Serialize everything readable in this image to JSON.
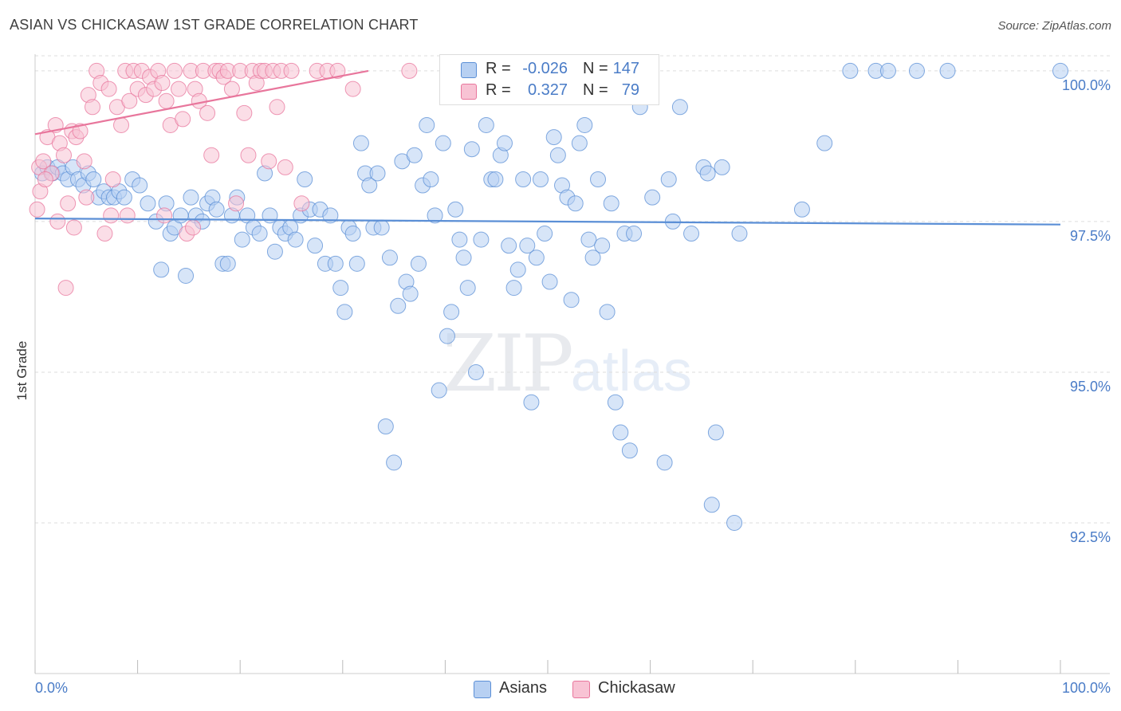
{
  "title": "ASIAN VS CHICKASAW 1ST GRADE CORRELATION CHART",
  "source": "Source: ZipAtlas.com",
  "watermark": {
    "part1": "ZIP",
    "part2": "atlas"
  },
  "legend": {
    "rows": [
      {
        "r_label": "R =",
        "r_value": "-0.026",
        "n_label": "N =",
        "n_value": "147",
        "color": "#5b8fd6",
        "fill": "#b7d0f2"
      },
      {
        "r_label": "R =",
        "r_value": "0.327",
        "n_label": "N =",
        "n_value": "79",
        "color": "#e8769c",
        "fill": "#f8c3d4"
      }
    ]
  },
  "bottom_legend": [
    {
      "label": "Asians",
      "fill": "#b7d0f2",
      "stroke": "#5b8fd6"
    },
    {
      "label": "Chickasaw",
      "fill": "#f8c3d4",
      "stroke": "#e8769c"
    }
  ],
  "chart_data": {
    "type": "scatter",
    "title": "ASIAN VS CHICKASAW 1ST GRADE CORRELATION CHART",
    "xlabel": "",
    "ylabel": "1st Grade",
    "xlim": [
      0,
      100
    ],
    "ylim": [
      90.0,
      100.25
    ],
    "x_ticks": [
      "0.0%",
      "100.0%"
    ],
    "y_ticks": [
      {
        "value": 100.0,
        "label": "100.0%"
      },
      {
        "value": 97.5,
        "label": "97.5%"
      },
      {
        "value": 95.0,
        "label": "95.0%"
      },
      {
        "value": 92.5,
        "label": "92.5%"
      }
    ],
    "grid": true,
    "legend_position": "top-center",
    "series": [
      {
        "name": "Asians",
        "color": "#5b8fd6",
        "fill": "#b7d0f2",
        "trend": {
          "x": [
            0,
            100
          ],
          "y": [
            97.55,
            97.45
          ]
        },
        "points": [
          [
            0.7,
            98.3
          ],
          [
            1.2,
            98.4
          ],
          [
            1.7,
            98.3
          ],
          [
            2.2,
            98.4
          ],
          [
            2.7,
            98.3
          ],
          [
            3.2,
            98.2
          ],
          [
            3.7,
            98.4
          ],
          [
            4.2,
            98.2
          ],
          [
            4.7,
            98.1
          ],
          [
            5.2,
            98.3
          ],
          [
            5.7,
            98.2
          ],
          [
            6.2,
            97.9
          ],
          [
            6.7,
            98.0
          ],
          [
            7.2,
            97.9
          ],
          [
            7.7,
            97.9
          ],
          [
            8.2,
            98.0
          ],
          [
            8.7,
            97.9
          ],
          [
            9.5,
            98.2
          ],
          [
            10.2,
            98.1
          ],
          [
            11,
            97.8
          ],
          [
            11.8,
            97.5
          ],
          [
            12.3,
            96.7
          ],
          [
            12.8,
            97.8
          ],
          [
            13.2,
            97.3
          ],
          [
            13.6,
            97.4
          ],
          [
            14.2,
            97.6
          ],
          [
            14.7,
            96.6
          ],
          [
            15.2,
            97.9
          ],
          [
            15.7,
            97.6
          ],
          [
            16.3,
            97.5
          ],
          [
            16.8,
            97.8
          ],
          [
            17.3,
            97.9
          ],
          [
            17.7,
            97.7
          ],
          [
            18.3,
            96.8
          ],
          [
            18.8,
            96.8
          ],
          [
            19.2,
            97.6
          ],
          [
            19.7,
            97.9
          ],
          [
            20.2,
            97.2
          ],
          [
            20.7,
            97.6
          ],
          [
            21.3,
            97.4
          ],
          [
            21.9,
            97.3
          ],
          [
            22.4,
            98.3
          ],
          [
            22.9,
            97.6
          ],
          [
            23.4,
            97.0
          ],
          [
            23.9,
            97.4
          ],
          [
            24.4,
            97.3
          ],
          [
            24.9,
            97.4
          ],
          [
            25.4,
            97.2
          ],
          [
            25.9,
            97.6
          ],
          [
            26.3,
            98.2
          ],
          [
            26.8,
            97.7
          ],
          [
            27.3,
            97.1
          ],
          [
            27.8,
            97.7
          ],
          [
            28.3,
            96.8
          ],
          [
            28.8,
            97.6
          ],
          [
            29.3,
            96.8
          ],
          [
            29.8,
            96.4
          ],
          [
            30.2,
            96.0
          ],
          [
            30.6,
            97.4
          ],
          [
            31,
            97.3
          ],
          [
            31.4,
            96.8
          ],
          [
            31.8,
            98.8
          ],
          [
            32.2,
            98.3
          ],
          [
            32.6,
            98.1
          ],
          [
            33,
            97.4
          ],
          [
            33.4,
            98.3
          ],
          [
            33.8,
            97.4
          ],
          [
            34.2,
            94.1
          ],
          [
            34.6,
            96.9
          ],
          [
            35,
            93.5
          ],
          [
            35.4,
            96.1
          ],
          [
            35.8,
            98.5
          ],
          [
            36.2,
            96.5
          ],
          [
            36.6,
            96.3
          ],
          [
            37,
            98.6
          ],
          [
            37.4,
            96.8
          ],
          [
            37.8,
            98.1
          ],
          [
            38.2,
            99.1
          ],
          [
            38.6,
            98.2
          ],
          [
            39,
            97.6
          ],
          [
            39.4,
            94.7
          ],
          [
            39.8,
            98.8
          ],
          [
            40.2,
            95.6
          ],
          [
            40.6,
            96.0
          ],
          [
            41,
            97.7
          ],
          [
            41.4,
            97.2
          ],
          [
            41.8,
            96.9
          ],
          [
            42.2,
            96.4
          ],
          [
            42.6,
            98.7
          ],
          [
            43,
            95.0
          ],
          [
            43.5,
            97.2
          ],
          [
            44,
            99.1
          ],
          [
            44.5,
            98.2
          ],
          [
            44.9,
            98.2
          ],
          [
            45.4,
            98.6
          ],
          [
            45.8,
            98.8
          ],
          [
            46.2,
            97.1
          ],
          [
            46.7,
            96.4
          ],
          [
            47.1,
            96.7
          ],
          [
            47.6,
            98.2
          ],
          [
            48,
            97.1
          ],
          [
            48.4,
            94.5
          ],
          [
            48.9,
            96.9
          ],
          [
            49.3,
            98.2
          ],
          [
            49.7,
            97.3
          ],
          [
            50.2,
            96.5
          ],
          [
            50.6,
            98.9
          ],
          [
            51,
            98.6
          ],
          [
            51.4,
            98.1
          ],
          [
            51.9,
            97.9
          ],
          [
            52.3,
            96.2
          ],
          [
            52.7,
            97.8
          ],
          [
            53.1,
            98.8
          ],
          [
            53.6,
            99.1
          ],
          [
            54,
            97.2
          ],
          [
            54.4,
            96.9
          ],
          [
            54.9,
            98.2
          ],
          [
            55.3,
            97.1
          ],
          [
            55.8,
            96.0
          ],
          [
            56.2,
            97.8
          ],
          [
            56.6,
            94.5
          ],
          [
            57.1,
            94.0
          ],
          [
            57.5,
            97.3
          ],
          [
            58,
            93.7
          ],
          [
            58.4,
            97.3
          ],
          [
            59,
            99.4
          ],
          [
            60.2,
            97.9
          ],
          [
            61.4,
            93.5
          ],
          [
            61.8,
            98.2
          ],
          [
            62.2,
            97.5
          ],
          [
            62.9,
            99.4
          ],
          [
            64,
            97.3
          ],
          [
            65.2,
            98.4
          ],
          [
            65.6,
            98.3
          ],
          [
            66,
            92.8
          ],
          [
            66.4,
            94.0
          ],
          [
            67,
            98.4
          ],
          [
            68.2,
            92.5
          ],
          [
            68.7,
            97.3
          ],
          [
            74.8,
            97.7
          ],
          [
            77,
            98.8
          ],
          [
            79.5,
            100.0
          ],
          [
            82,
            100.0
          ],
          [
            83.2,
            100.0
          ],
          [
            86,
            100.0
          ],
          [
            89,
            100.0
          ],
          [
            100,
            100.0
          ]
        ]
      },
      {
        "name": "Chickasaw",
        "color": "#e8769c",
        "fill": "#f8c3d4",
        "trend": {
          "x": [
            0,
            32.5
          ],
          "y": [
            98.95,
            100.0
          ]
        },
        "points": [
          [
            0.4,
            98.4
          ],
          [
            0.8,
            98.5
          ],
          [
            1.2,
            98.9
          ],
          [
            1.6,
            98.3
          ],
          [
            2,
            99.1
          ],
          [
            2.4,
            98.8
          ],
          [
            2.8,
            98.6
          ],
          [
            3.2,
            97.8
          ],
          [
            3.6,
            99.0
          ],
          [
            4,
            98.9
          ],
          [
            4.4,
            99.0
          ],
          [
            4.8,
            98.5
          ],
          [
            5.2,
            99.6
          ],
          [
            5.6,
            99.4
          ],
          [
            6,
            100.0
          ],
          [
            6.4,
            99.8
          ],
          [
            6.8,
            97.3
          ],
          [
            7.2,
            99.7
          ],
          [
            7.6,
            98.2
          ],
          [
            8,
            99.4
          ],
          [
            8.4,
            99.1
          ],
          [
            8.8,
            100.0
          ],
          [
            9.2,
            99.5
          ],
          [
            9.6,
            100.0
          ],
          [
            10,
            99.7
          ],
          [
            10.4,
            100.0
          ],
          [
            10.8,
            99.6
          ],
          [
            11.2,
            99.9
          ],
          [
            11.6,
            99.7
          ],
          [
            12,
            100.0
          ],
          [
            12.4,
            99.8
          ],
          [
            12.8,
            99.5
          ],
          [
            13.2,
            99.1
          ],
          [
            13.6,
            100.0
          ],
          [
            14,
            99.7
          ],
          [
            14.4,
            99.2
          ],
          [
            14.8,
            97.3
          ],
          [
            15.2,
            100.0
          ],
          [
            15.6,
            99.7
          ],
          [
            16,
            99.5
          ],
          [
            16.4,
            100.0
          ],
          [
            16.8,
            99.3
          ],
          [
            17.2,
            98.6
          ],
          [
            17.6,
            100.0
          ],
          [
            18,
            100.0
          ],
          [
            18.4,
            99.9
          ],
          [
            18.8,
            100.0
          ],
          [
            19.2,
            99.7
          ],
          [
            19.6,
            97.8
          ],
          [
            20,
            100.0
          ],
          [
            20.4,
            99.3
          ],
          [
            20.8,
            98.6
          ],
          [
            21.2,
            100.0
          ],
          [
            21.6,
            99.8
          ],
          [
            22,
            100.0
          ],
          [
            22.4,
            100.0
          ],
          [
            22.8,
            98.5
          ],
          [
            23.2,
            100.0
          ],
          [
            23.6,
            99.4
          ],
          [
            24,
            100.0
          ],
          [
            24.4,
            98.4
          ],
          [
            25,
            100.0
          ],
          [
            26,
            97.8
          ],
          [
            27.5,
            100.0
          ],
          [
            28.5,
            100.0
          ],
          [
            29.5,
            100.0
          ],
          [
            31,
            99.7
          ],
          [
            36.5,
            100.0
          ],
          [
            0.2,
            97.7
          ],
          [
            0.5,
            98.0
          ],
          [
            1.0,
            98.2
          ],
          [
            2.2,
            97.5
          ],
          [
            3.0,
            96.4
          ],
          [
            3.8,
            97.4
          ],
          [
            5.0,
            97.9
          ],
          [
            7.4,
            97.6
          ],
          [
            9.0,
            97.6
          ],
          [
            12.6,
            97.6
          ],
          [
            15.4,
            97.4
          ]
        ]
      }
    ]
  }
}
